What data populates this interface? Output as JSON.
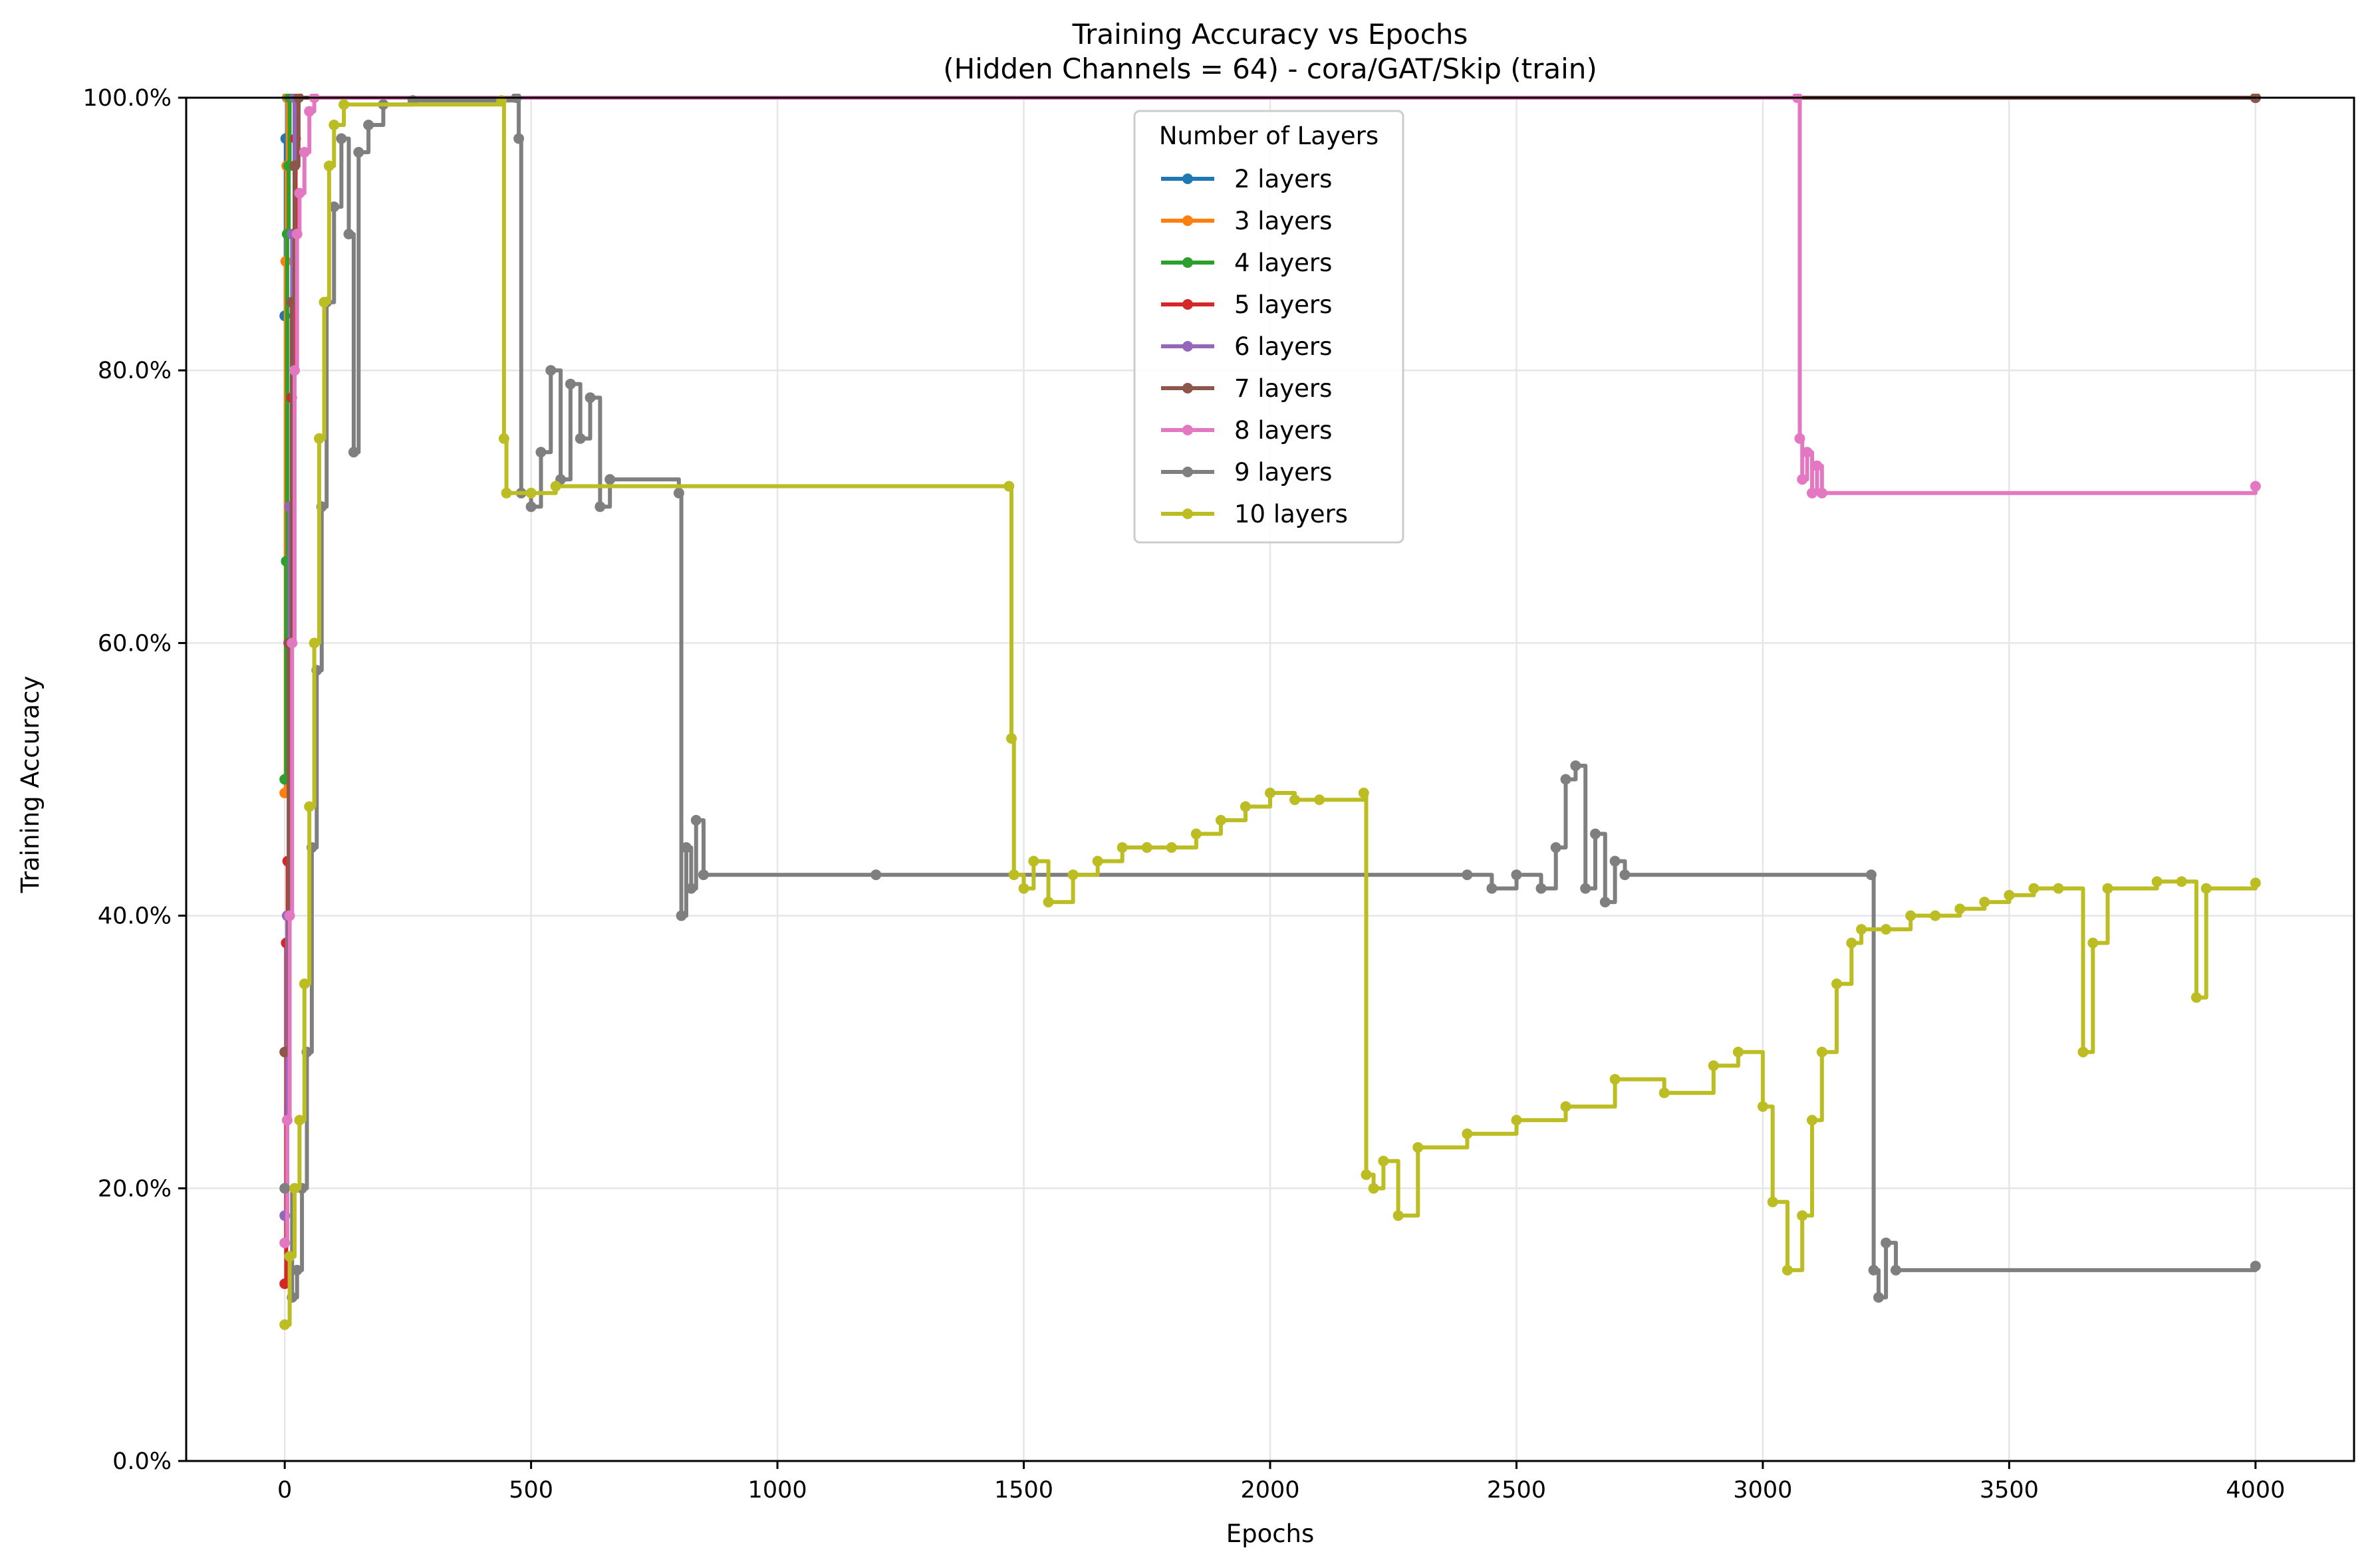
{
  "chart_data": {
    "type": "line",
    "title": "Training Accuracy vs Epochs",
    "subtitle": "(Hidden Channels = 64) - cora/GAT/Skip (train)",
    "xlabel": "Epochs",
    "ylabel": "Training Accuracy",
    "xlim": [
      -200,
      4200
    ],
    "ylim": [
      0,
      100
    ],
    "x_ticks": [
      0,
      500,
      1000,
      1500,
      2000,
      2500,
      3000,
      3500,
      4000
    ],
    "y_ticks": [
      0,
      20,
      40,
      60,
      80,
      100
    ],
    "y_tick_labels": [
      "0.0%",
      "20.0%",
      "40.0%",
      "60.0%",
      "80.0%",
      "100.0%"
    ],
    "grid": true,
    "legend": {
      "title": "Number of Layers",
      "position": "top-center"
    },
    "series": [
      {
        "name": "2 layers",
        "color": "#1f77b4",
        "points": [
          [
            0,
            84
          ],
          [
            2,
            97
          ],
          [
            5,
            100
          ],
          [
            4000,
            100
          ]
        ]
      },
      {
        "name": "3 layers",
        "color": "#ff7f0e",
        "points": [
          [
            0,
            49
          ],
          [
            2,
            88
          ],
          [
            4,
            95
          ],
          [
            6,
            100
          ],
          [
            4000,
            100
          ]
        ]
      },
      {
        "name": "4 layers",
        "color": "#2ca02c",
        "points": [
          [
            0,
            50
          ],
          [
            3,
            66
          ],
          [
            5,
            90
          ],
          [
            8,
            95
          ],
          [
            10,
            100
          ],
          [
            4000,
            100
          ]
        ]
      },
      {
        "name": "5 layers",
        "color": "#d62728",
        "points": [
          [
            0,
            13
          ],
          [
            3,
            38
          ],
          [
            6,
            44
          ],
          [
            10,
            60
          ],
          [
            14,
            78
          ],
          [
            18,
            90
          ],
          [
            22,
            97
          ],
          [
            28,
            100
          ],
          [
            4000,
            100
          ]
        ]
      },
      {
        "name": "6 layers",
        "color": "#9467bd",
        "points": [
          [
            0,
            18
          ],
          [
            5,
            40
          ],
          [
            10,
            70
          ],
          [
            15,
            90
          ],
          [
            20,
            100
          ],
          [
            4000,
            100
          ]
        ]
      },
      {
        "name": "7 layers",
        "color": "#8c564b",
        "points": [
          [
            0,
            30
          ],
          [
            8,
            60
          ],
          [
            14,
            85
          ],
          [
            20,
            95
          ],
          [
            28,
            100
          ],
          [
            4000,
            100
          ]
        ]
      },
      {
        "name": "8 layers",
        "color": "#e377c2",
        "points": [
          [
            0,
            16
          ],
          [
            5,
            25
          ],
          [
            10,
            40
          ],
          [
            15,
            60
          ],
          [
            20,
            80
          ],
          [
            25,
            90
          ],
          [
            30,
            93
          ],
          [
            40,
            96
          ],
          [
            50,
            99
          ],
          [
            60,
            100
          ],
          [
            3070,
            100
          ],
          [
            3075,
            75
          ],
          [
            3080,
            72
          ],
          [
            3090,
            74
          ],
          [
            3100,
            71
          ],
          [
            3110,
            73
          ],
          [
            3120,
            71
          ],
          [
            4000,
            71.5
          ]
        ]
      },
      {
        "name": "9 layers",
        "color": "#7f7f7f",
        "points": [
          [
            0,
            20
          ],
          [
            15,
            12
          ],
          [
            25,
            14
          ],
          [
            35,
            20
          ],
          [
            45,
            30
          ],
          [
            55,
            45
          ],
          [
            65,
            58
          ],
          [
            75,
            70
          ],
          [
            85,
            85
          ],
          [
            100,
            92
          ],
          [
            115,
            97
          ],
          [
            130,
            90
          ],
          [
            140,
            74
          ],
          [
            150,
            96
          ],
          [
            170,
            98
          ],
          [
            200,
            99.5
          ],
          [
            260,
            99.8
          ],
          [
            470,
            100
          ],
          [
            475,
            97
          ],
          [
            480,
            71
          ],
          [
            500,
            70
          ],
          [
            520,
            74
          ],
          [
            540,
            80
          ],
          [
            560,
            72
          ],
          [
            580,
            79
          ],
          [
            600,
            75
          ],
          [
            620,
            78
          ],
          [
            640,
            70
          ],
          [
            660,
            72
          ],
          [
            800,
            71
          ],
          [
            805,
            40
          ],
          [
            815,
            45
          ],
          [
            825,
            42
          ],
          [
            835,
            47
          ],
          [
            850,
            43
          ],
          [
            1200,
            43
          ],
          [
            2400,
            43
          ],
          [
            2450,
            42
          ],
          [
            2500,
            43
          ],
          [
            2550,
            42
          ],
          [
            2580,
            45
          ],
          [
            2600,
            50
          ],
          [
            2620,
            51
          ],
          [
            2640,
            42
          ],
          [
            2660,
            46
          ],
          [
            2680,
            41
          ],
          [
            2700,
            44
          ],
          [
            2720,
            43
          ],
          [
            3220,
            43
          ],
          [
            3225,
            14
          ],
          [
            3235,
            12
          ],
          [
            3250,
            16
          ],
          [
            3270,
            14
          ],
          [
            4000,
            14.3
          ]
        ]
      },
      {
        "name": "10 layers",
        "color": "#bcbd22",
        "points": [
          [
            0,
            10
          ],
          [
            10,
            15
          ],
          [
            20,
            20
          ],
          [
            30,
            25
          ],
          [
            40,
            35
          ],
          [
            50,
            48
          ],
          [
            60,
            60
          ],
          [
            70,
            75
          ],
          [
            80,
            85
          ],
          [
            90,
            95
          ],
          [
            100,
            98
          ],
          [
            120,
            99.5
          ],
          [
            440,
            99.8
          ],
          [
            445,
            75
          ],
          [
            450,
            71
          ],
          [
            500,
            71
          ],
          [
            550,
            71.5
          ],
          [
            1470,
            71.5
          ],
          [
            1475,
            53
          ],
          [
            1480,
            43
          ],
          [
            1500,
            42
          ],
          [
            1520,
            44
          ],
          [
            1550,
            41
          ],
          [
            1600,
            43
          ],
          [
            1650,
            44
          ],
          [
            1700,
            45
          ],
          [
            1750,
            45
          ],
          [
            1800,
            45
          ],
          [
            1850,
            46
          ],
          [
            1900,
            47
          ],
          [
            1950,
            48
          ],
          [
            2000,
            49
          ],
          [
            2050,
            48.5
          ],
          [
            2100,
            48.5
          ],
          [
            2190,
            49
          ],
          [
            2195,
            21
          ],
          [
            2210,
            20
          ],
          [
            2230,
            22
          ],
          [
            2260,
            18
          ],
          [
            2300,
            23
          ],
          [
            2400,
            24
          ],
          [
            2500,
            25
          ],
          [
            2600,
            26
          ],
          [
            2700,
            28
          ],
          [
            2800,
            27
          ],
          [
            2900,
            29
          ],
          [
            2950,
            30
          ],
          [
            3000,
            26
          ],
          [
            3020,
            19
          ],
          [
            3050,
            14
          ],
          [
            3080,
            18
          ],
          [
            3100,
            25
          ],
          [
            3120,
            30
          ],
          [
            3150,
            35
          ],
          [
            3180,
            38
          ],
          [
            3200,
            39
          ],
          [
            3250,
            39
          ],
          [
            3300,
            40
          ],
          [
            3350,
            40
          ],
          [
            3400,
            40.5
          ],
          [
            3450,
            41
          ],
          [
            3500,
            41.5
          ],
          [
            3550,
            42
          ],
          [
            3600,
            42
          ],
          [
            3650,
            30
          ],
          [
            3670,
            38
          ],
          [
            3700,
            42
          ],
          [
            3800,
            42.5
          ],
          [
            3850,
            42.5
          ],
          [
            3880,
            34
          ],
          [
            3900,
            42
          ],
          [
            4000,
            42.4
          ]
        ]
      }
    ]
  }
}
